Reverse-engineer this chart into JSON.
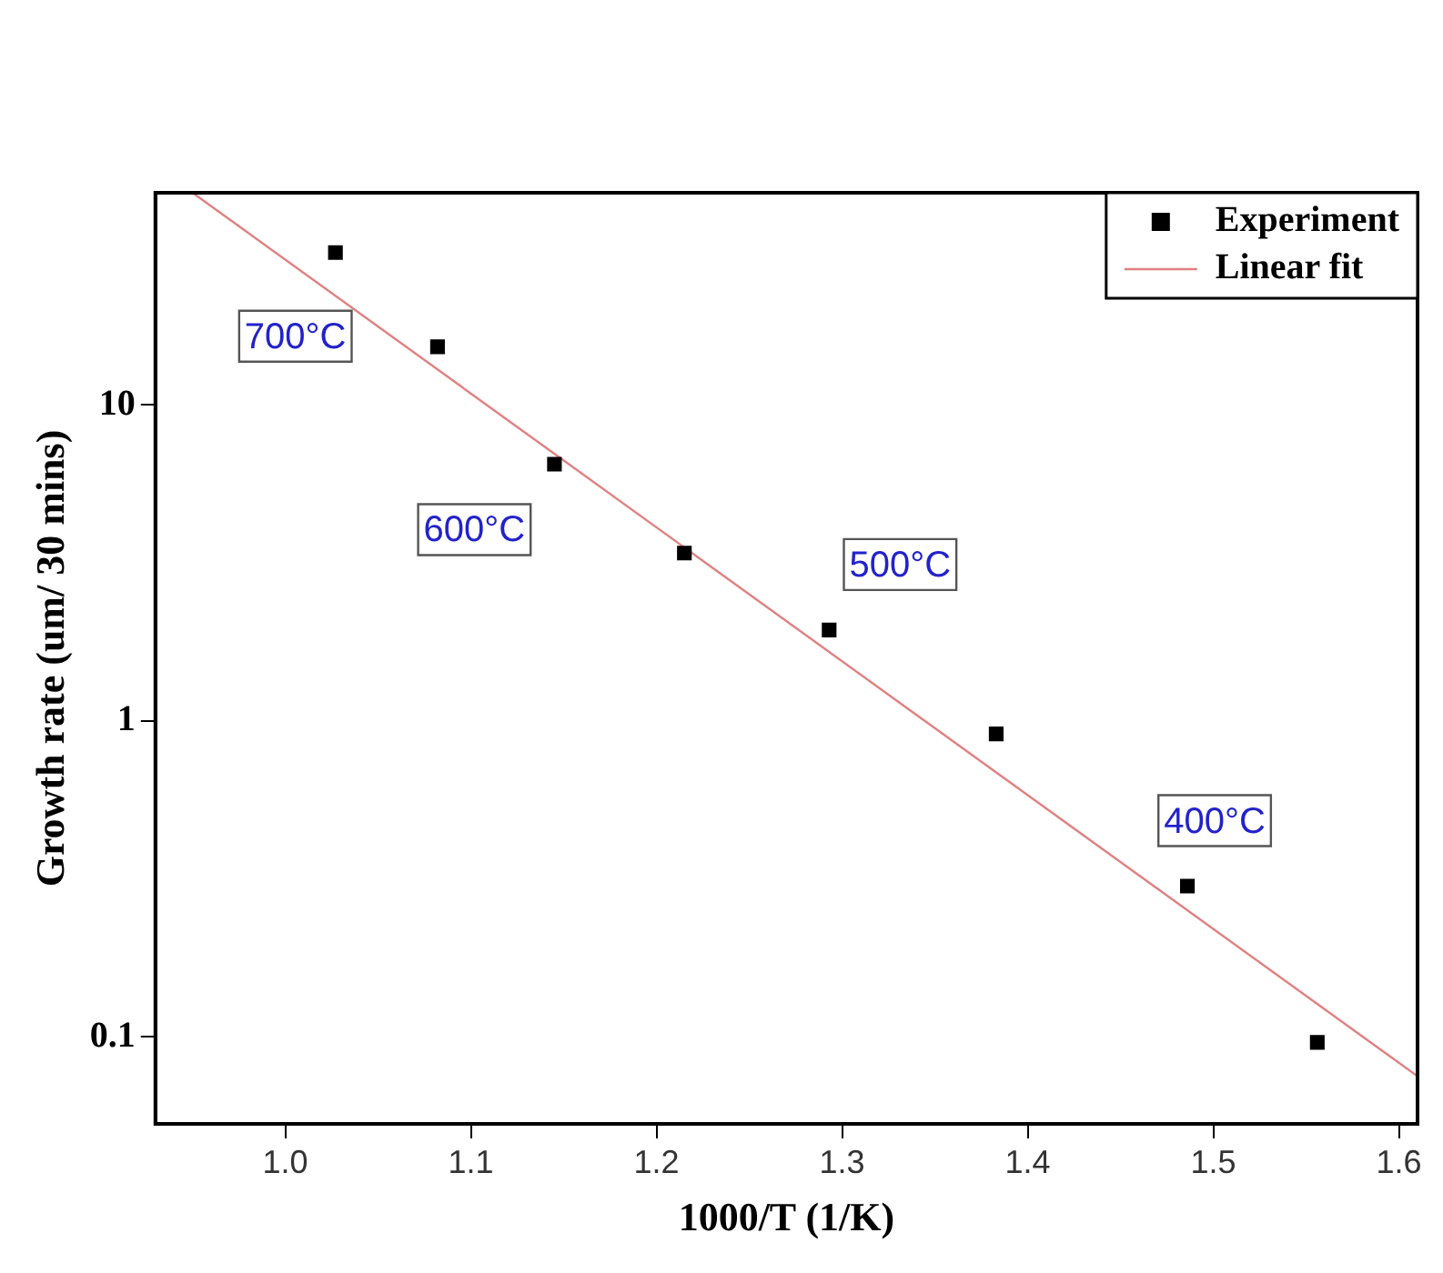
{
  "chart_data": {
    "type": "scatter",
    "xlabel": "1000/T (1/K)",
    "ylabel": "Growth rate (um/ 30 mins)",
    "log": "y",
    "xlim": [
      0.93,
      1.61
    ],
    "xticks": [
      {
        "value": 1,
        "label": "1.0"
      },
      1.1,
      1.2,
      1.3,
      1.4,
      1.5,
      1.6
    ],
    "ylim": [
      0.053,
      47
    ],
    "yticks": [
      0.1,
      1,
      10
    ],
    "legend": "top right",
    "grid": false,
    "series": [
      {
        "name": "Experiment",
        "color": "#000000",
        "marker": "square",
        "x": [
          1.027,
          1.082,
          1.145,
          1.215,
          1.293,
          1.383,
          1.486,
          1.556
        ],
        "values": [
          30.4,
          15.3,
          6.5,
          3.4,
          1.94,
          0.91,
          0.3,
          0.096
        ]
      },
      {
        "name": "Linear fit",
        "type": "line",
        "color": "#e08080",
        "x": [
          0.95,
          1.61
        ],
        "values": [
          47,
          0.075
        ]
      }
    ],
    "annotations": [
      {
        "text": "700°C",
        "x": 1.027,
        "y": 30.4
      },
      {
        "text": "600°C",
        "x": 1.145,
        "y": 6.5
      },
      {
        "text": "500°C",
        "x": 1.293,
        "y": 1.94
      },
      {
        "text": "400°C",
        "x": 1.486,
        "y": 0.3
      }
    ]
  }
}
